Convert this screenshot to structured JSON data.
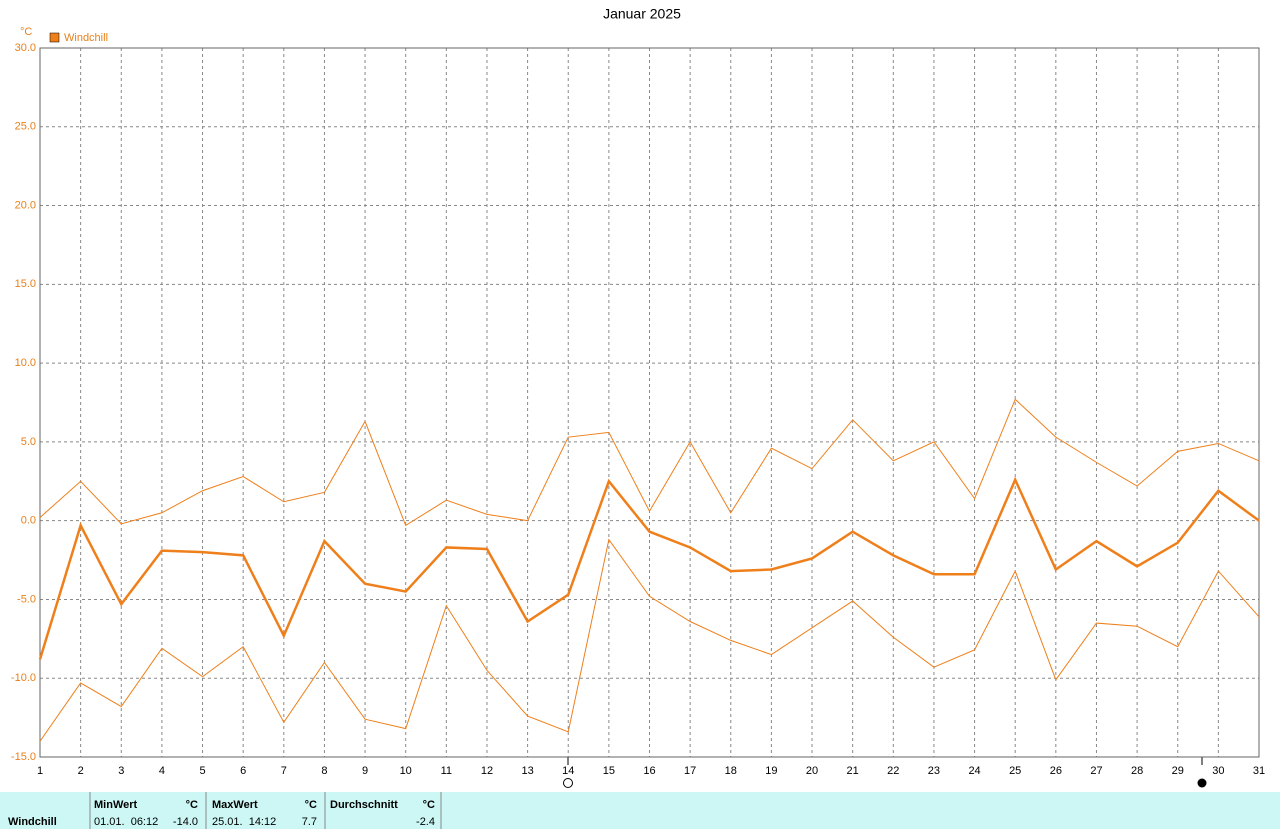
{
  "chart_data": {
    "type": "line",
    "title": "Januar 2025",
    "y_unit": "°C",
    "x": [
      1,
      2,
      3,
      4,
      5,
      6,
      7,
      8,
      9,
      10,
      11,
      12,
      13,
      14,
      15,
      16,
      17,
      18,
      19,
      20,
      21,
      22,
      23,
      24,
      25,
      26,
      27,
      28,
      29,
      30,
      31
    ],
    "xlim": [
      1,
      31
    ],
    "xticks": [
      1,
      2,
      3,
      4,
      5,
      6,
      7,
      8,
      9,
      10,
      11,
      12,
      13,
      14,
      15,
      16,
      17,
      18,
      19,
      20,
      21,
      22,
      23,
      24,
      25,
      26,
      27,
      28,
      29,
      30,
      31
    ],
    "ylim": [
      -15,
      30
    ],
    "yticks": [
      {
        "value": -15,
        "label": "-15.0"
      },
      {
        "value": -10,
        "label": "-10.0"
      },
      {
        "value": -5,
        "label": "-5.0"
      },
      {
        "value": 0,
        "label": "0.0"
      },
      {
        "value": 5,
        "label": "5.0"
      },
      {
        "value": 10,
        "label": "10.0"
      },
      {
        "value": 15,
        "label": "15.0"
      },
      {
        "value": 20,
        "label": "20.0"
      },
      {
        "value": 25,
        "label": "25.0"
      },
      {
        "value": 30,
        "label": "30.0"
      }
    ],
    "grid": true,
    "series": [
      {
        "color": "#ef7f1a",
        "width": 1,
        "values": [
          0.2,
          2.5,
          -0.2,
          0.5,
          1.9,
          2.8,
          1.2,
          1.8,
          6.3,
          -0.3,
          1.3,
          0.4,
          0.0,
          5.3,
          5.6,
          0.6,
          5.0,
          0.5,
          4.6,
          3.3,
          6.4,
          3.8,
          5.0,
          1.4,
          7.7,
          5.3,
          3.7,
          2.2,
          4.4,
          4.9,
          3.8
        ]
      },
      {
        "name": "Windchill",
        "color": "#ef7f1a",
        "width": 2.5,
        "values": [
          -8.8,
          -0.3,
          -5.3,
          -1.9,
          -2.0,
          -2.2,
          -7.3,
          -1.3,
          -4.0,
          -4.5,
          -1.7,
          -1.8,
          -6.4,
          -4.7,
          2.5,
          -0.7,
          -1.7,
          -3.2,
          -3.1,
          -2.4,
          -0.7,
          -2.2,
          -3.4,
          -3.4,
          2.6,
          -3.1,
          -1.3,
          -2.9,
          -1.4,
          1.9,
          0.0
        ]
      },
      {
        "color": "#ef7f1a",
        "width": 1,
        "values": [
          -14.0,
          -10.3,
          -11.8,
          -8.1,
          -9.9,
          -8.0,
          -12.8,
          -9.0,
          -12.6,
          -13.2,
          -5.4,
          -9.5,
          -12.4,
          -13.4,
          -1.2,
          -4.8,
          -6.4,
          -7.6,
          -8.5,
          -6.8,
          -5.1,
          -7.4,
          -9.3,
          -8.2,
          -3.2,
          -10.1,
          -6.5,
          -6.7,
          -8.0,
          -3.2,
          -6.1
        ]
      }
    ]
  },
  "stats": {
    "row_label": "Windchill",
    "columns": [
      {
        "header": "MinWert",
        "unit": "°C",
        "date": "01.01.  06:12",
        "value": "-14.0"
      },
      {
        "header": "MaxWert",
        "unit": "°C",
        "date": "25.01.  14:12",
        "value": "7.7"
      },
      {
        "header": "Durchschnitt",
        "unit": "°C",
        "value": "-2.4"
      }
    ]
  }
}
